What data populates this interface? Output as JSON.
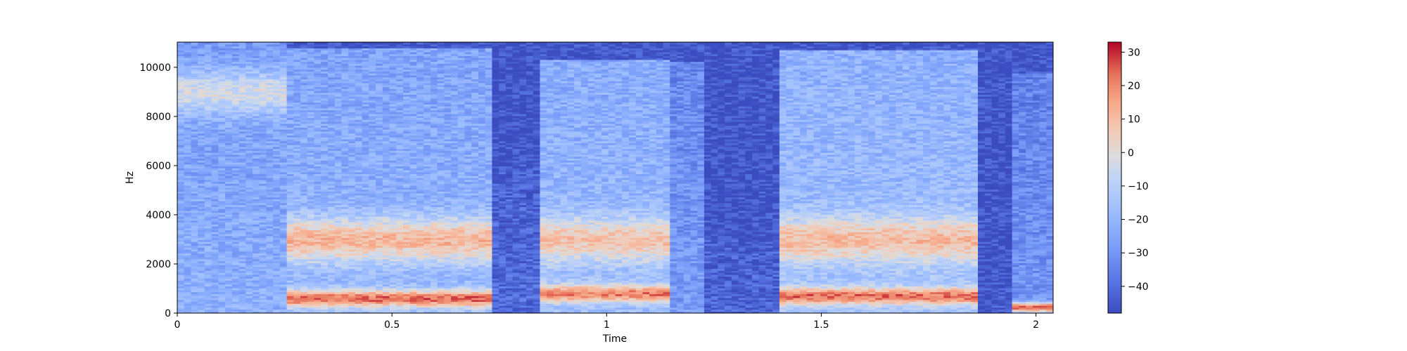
{
  "chart_data": {
    "type": "heatmap",
    "title": "",
    "xlabel": "Time",
    "ylabel": "Hz",
    "xlim": [
      0,
      2.04
    ],
    "ylim": [
      0,
      11025
    ],
    "x_ticks": [
      0,
      0.5,
      1,
      1.5,
      2
    ],
    "x_tick_labels": [
      "0",
      "0.5",
      "1",
      "1.5",
      "2"
    ],
    "y_ticks": [
      0,
      2000,
      4000,
      6000,
      8000,
      10000
    ],
    "y_tick_labels": [
      "0",
      "2000",
      "4000",
      "6000",
      "8000",
      "10000"
    ],
    "colorbar": {
      "colormap": "coolwarm",
      "range": [
        -48,
        33
      ],
      "ticks": [
        -40,
        -30,
        -20,
        -10,
        0,
        10,
        20,
        30
      ],
      "tick_labels": [
        "−40",
        "−30",
        "−20",
        "−10",
        "0",
        "10",
        "20",
        "30"
      ]
    },
    "segments": [
      {
        "t0": 0.0,
        "t1": 0.25,
        "level_db": -22,
        "fmax": 11025,
        "hot_band_f": 9000,
        "hot_band_db": 2
      },
      {
        "t0": 0.25,
        "t1": 0.74,
        "level_db": -20,
        "fmax": 10800,
        "formant_db": 25,
        "formant_f": 600
      },
      {
        "t0": 0.74,
        "t1": 0.84,
        "level_db": -40,
        "fmax": 6000
      },
      {
        "t0": 0.84,
        "t1": 1.15,
        "level_db": -18,
        "fmax": 10300,
        "formant_db": 22,
        "formant_f": 800
      },
      {
        "t0": 1.15,
        "t1": 1.23,
        "level_db": -28,
        "fmax": 10200
      },
      {
        "t0": 1.23,
        "t1": 1.4,
        "level_db": -42,
        "fmax": 3000
      },
      {
        "t0": 1.4,
        "t1": 1.87,
        "level_db": -16,
        "fmax": 10700,
        "formant_db": 24,
        "formant_f": 700
      },
      {
        "t0": 1.87,
        "t1": 1.95,
        "level_db": -45,
        "fmax": 1000
      },
      {
        "t0": 1.95,
        "t1": 2.04,
        "level_db": -30,
        "fmax": 9800,
        "low_db": 28,
        "low_f": 250
      }
    ]
  }
}
